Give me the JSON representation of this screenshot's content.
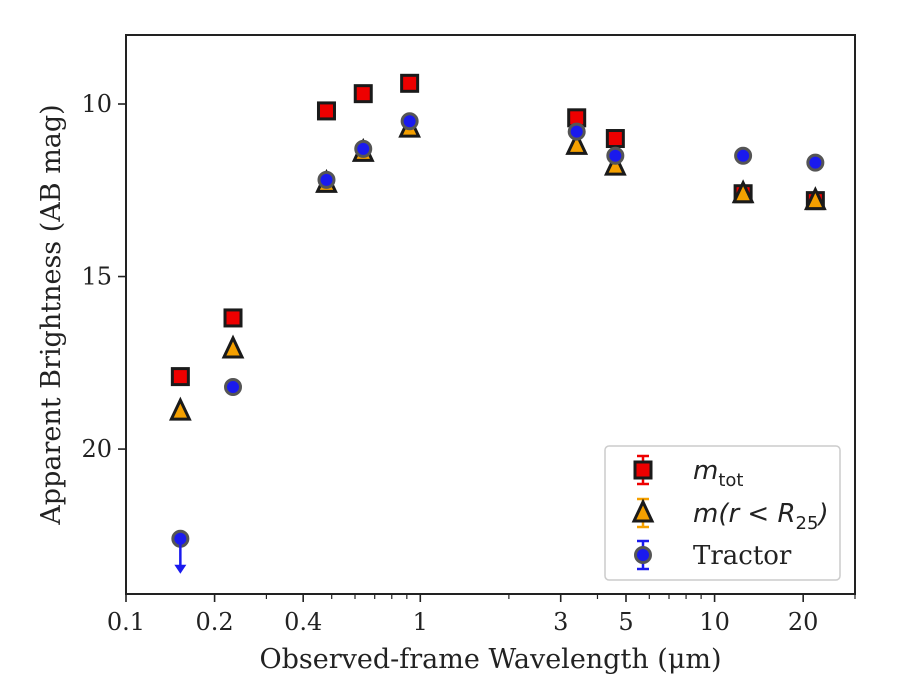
{
  "chart_data": {
    "type": "scatter",
    "xlabel": "Observed-frame Wavelength (μm)",
    "ylabel": "Apparent Brightness (AB mag)",
    "xscale": "log",
    "xlim": [
      0.1,
      30
    ],
    "ylim": [
      24.2,
      8
    ],
    "y_inverted": true,
    "x_ticks": [
      0.1,
      0.2,
      0.4,
      1,
      3,
      5,
      10,
      20
    ],
    "x_tick_labels": [
      "0.1",
      "0.2",
      "0.4",
      "1",
      "3",
      "5",
      "10",
      "20"
    ],
    "y_ticks": [
      10,
      15,
      20
    ],
    "y_tick_labels": [
      "10",
      "15",
      "20"
    ],
    "legend_position": "lower right",
    "series": [
      {
        "name": "m_tot",
        "marker": "square",
        "color": "#ee0000",
        "x": [
          0.153,
          0.231,
          0.48,
          0.64,
          0.92,
          3.4,
          4.6,
          12.5,
          22.0
        ],
        "y": [
          17.9,
          16.2,
          10.2,
          9.7,
          9.4,
          10.4,
          11.0,
          12.6,
          12.8
        ]
      },
      {
        "name": "m(r < R25)",
        "marker": "triangle",
        "color": "#f5a000",
        "x": [
          0.153,
          0.231,
          0.48,
          0.64,
          0.92,
          3.4,
          4.6,
          12.5,
          22.0
        ],
        "y": [
          18.9,
          17.1,
          12.3,
          11.4,
          10.7,
          11.2,
          11.8,
          12.6,
          12.8
        ]
      },
      {
        "name": "Tractor",
        "marker": "circle",
        "color": "#1a1aee",
        "x": [
          0.153,
          0.231,
          0.48,
          0.64,
          0.92,
          3.4,
          4.6,
          12.5,
          22.0
        ],
        "y": [
          22.6,
          18.2,
          12.2,
          11.3,
          10.5,
          10.8,
          11.5,
          11.5,
          11.7
        ],
        "upper_limit_x": [
          0.153
        ]
      }
    ]
  },
  "legend": {
    "entries": [
      {
        "base": "m",
        "sub": "tot",
        "rest": ""
      },
      {
        "base": "m(r < R",
        "sub": "25",
        "rest": ")"
      },
      {
        "base": "Tractor",
        "sub": "",
        "rest": ""
      }
    ]
  }
}
